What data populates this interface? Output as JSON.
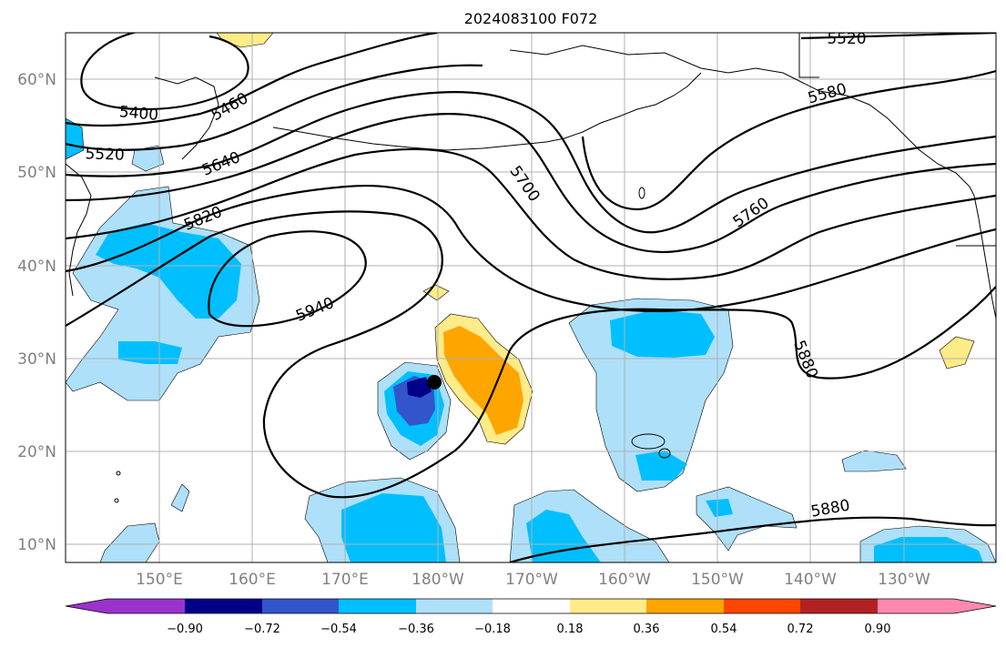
{
  "title": "2024083100 F072",
  "map": {
    "lat_labels": [
      "60°N",
      "50°N",
      "40°N",
      "30°N",
      "20°N",
      "10°N"
    ],
    "lon_labels": [
      "150°E",
      "160°E",
      "170°E",
      "180°W",
      "170°W",
      "160°W",
      "150°W",
      "140°W",
      "130°W"
    ],
    "contour_labels": [
      "5400",
      "5460",
      "5520",
      "5640",
      "5820",
      "5940",
      "5700",
      "5520",
      "5580",
      "5760",
      "5880",
      "5880"
    ],
    "storm_marker": {
      "lat": 27.5,
      "lon": 181
    }
  },
  "colorbar": {
    "ticks": [
      "−0.90",
      "−0.72",
      "−0.54",
      "−0.36",
      "−0.18",
      "0.18",
      "0.36",
      "0.54",
      "0.72",
      "0.90"
    ],
    "colors": [
      "#9933cc",
      "#000088",
      "#3355cc",
      "#00bfff",
      "#aee0fa",
      "#ffffff",
      "#ffeb88",
      "#ffa500",
      "#ff4500",
      "#b22222",
      "#ff88b0"
    ]
  }
}
